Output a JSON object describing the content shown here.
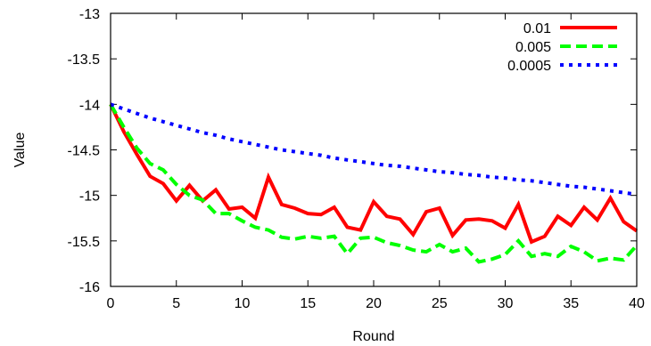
{
  "chart_data": {
    "type": "line",
    "xlabel": "Round",
    "ylabel": "Value",
    "xlim": [
      0,
      40
    ],
    "ylim": [
      -16,
      -13
    ],
    "x_ticks": [
      0,
      5,
      10,
      15,
      20,
      25,
      30,
      35,
      40
    ],
    "y_ticks": [
      -13,
      -13.5,
      -14,
      -14.5,
      -15,
      -15.5,
      -16
    ],
    "x_tick_labels": [
      "0",
      "5",
      "10",
      "15",
      "20",
      "25",
      "30",
      "35",
      "40"
    ],
    "y_tick_labels": [
      "-13",
      "-13.5",
      "-14",
      "-14.5",
      "-15",
      "-15.5",
      "-16"
    ],
    "grid": false,
    "legend_position": "top-right",
    "x": [
      0,
      1,
      2,
      3,
      4,
      5,
      6,
      7,
      8,
      9,
      10,
      11,
      12,
      13,
      14,
      15,
      16,
      17,
      18,
      19,
      20,
      21,
      22,
      23,
      24,
      25,
      26,
      27,
      28,
      29,
      30,
      31,
      32,
      33,
      34,
      35,
      36,
      37,
      38,
      39,
      40
    ],
    "series": [
      {
        "name": "0.01",
        "color": "#ff0000",
        "style": "solid",
        "values": [
          -14.0,
          -14.3,
          -14.55,
          -14.79,
          -14.87,
          -15.06,
          -14.89,
          -15.06,
          -14.94,
          -15.15,
          -15.13,
          -15.25,
          -14.8,
          -15.1,
          -15.14,
          -15.2,
          -15.21,
          -15.13,
          -15.35,
          -15.38,
          -15.07,
          -15.23,
          -15.26,
          -15.43,
          -15.18,
          -15.14,
          -15.44,
          -15.27,
          -15.26,
          -15.28,
          -15.36,
          -15.1,
          -15.51,
          -15.45,
          -15.23,
          -15.33,
          -15.13,
          -15.27,
          -15.03,
          -15.29,
          -15.39
        ]
      },
      {
        "name": "0.005",
        "color": "#00ff00",
        "style": "dashed",
        "values": [
          -14.0,
          -14.25,
          -14.48,
          -14.65,
          -14.72,
          -14.88,
          -15.0,
          -15.05,
          -15.2,
          -15.2,
          -15.28,
          -15.35,
          -15.38,
          -15.46,
          -15.48,
          -15.45,
          -15.47,
          -15.45,
          -15.64,
          -15.47,
          -15.46,
          -15.52,
          -15.55,
          -15.6,
          -15.62,
          -15.54,
          -15.62,
          -15.58,
          -15.73,
          -15.7,
          -15.65,
          -15.5,
          -15.67,
          -15.64,
          -15.67,
          -15.56,
          -15.62,
          -15.72,
          -15.69,
          -15.71,
          -15.55
        ]
      },
      {
        "name": "0.0005",
        "color": "#0000ff",
        "style": "dotted",
        "values": [
          -14.0,
          -14.05,
          -14.1,
          -14.15,
          -14.19,
          -14.23,
          -14.27,
          -14.31,
          -14.34,
          -14.38,
          -14.41,
          -14.44,
          -14.47,
          -14.5,
          -14.52,
          -14.54,
          -14.56,
          -14.59,
          -14.61,
          -14.63,
          -14.65,
          -14.67,
          -14.68,
          -14.7,
          -14.72,
          -14.74,
          -14.75,
          -14.77,
          -14.78,
          -14.8,
          -14.81,
          -14.83,
          -14.84,
          -14.86,
          -14.88,
          -14.9,
          -14.91,
          -14.93,
          -14.95,
          -14.97,
          -14.99
        ]
      }
    ]
  }
}
